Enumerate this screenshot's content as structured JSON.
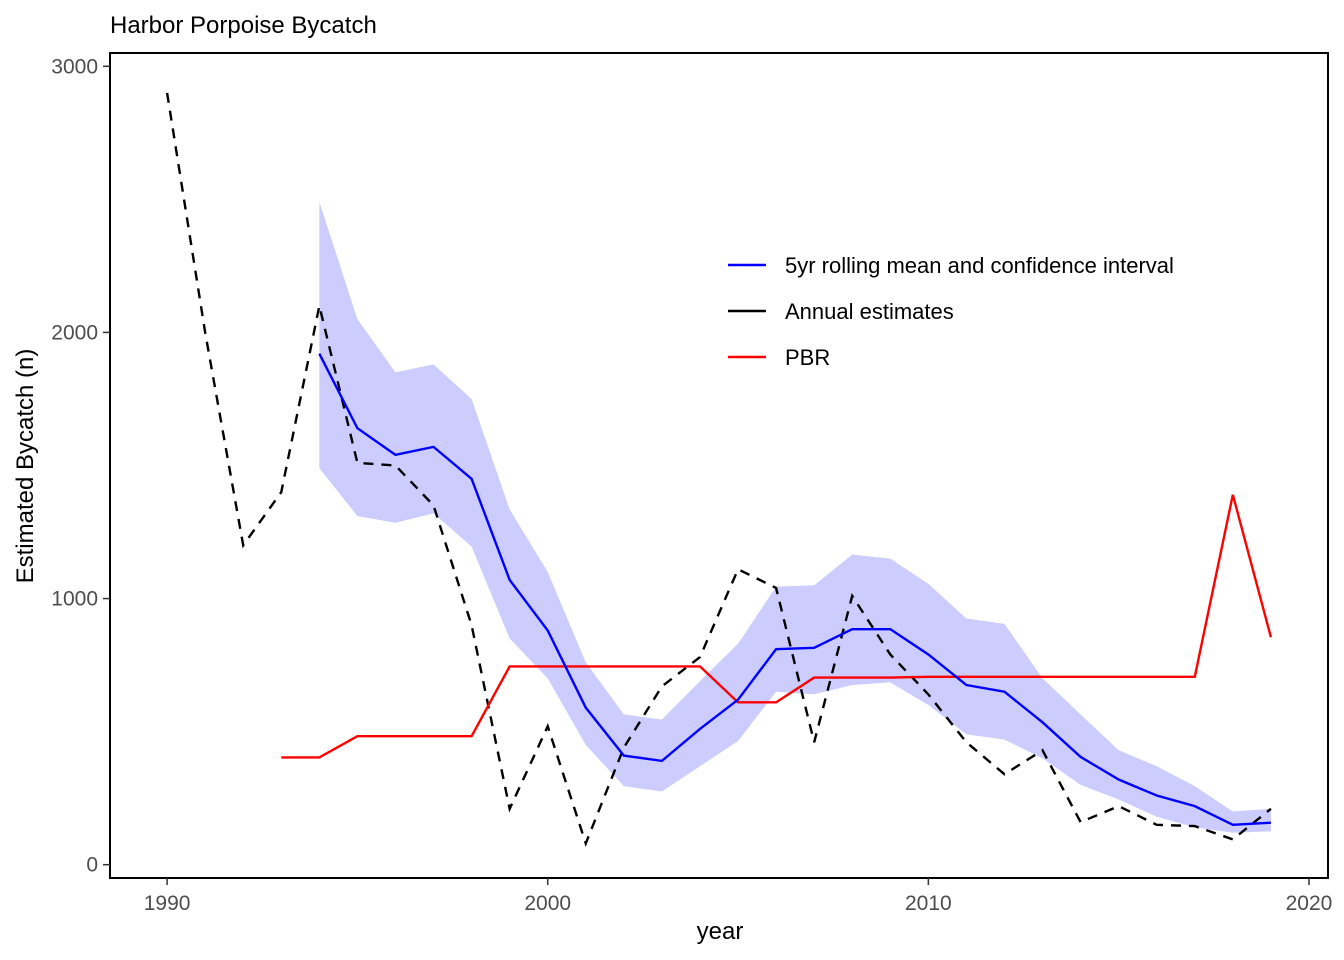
{
  "chart_data": {
    "type": "line",
    "title": "Harbor Porpoise Bycatch",
    "xlabel": "year",
    "ylabel": "Estimated Bycatch (n)",
    "xlim": [
      1988.5,
      2020.5
    ],
    "ylim": [
      -50,
      3050
    ],
    "x_ticks": [
      1990,
      2000,
      2010,
      2020
    ],
    "y_ticks": [
      0,
      1000,
      2000,
      3000
    ],
    "grid": false,
    "legend_position": "top-right inside",
    "colors": {
      "rolling_mean": "#0000ff",
      "ci_band": "#ccccff",
      "annual": "#000000",
      "pbr": "#ff0000"
    },
    "legend": [
      {
        "label": "5yr rolling mean and confidence interval",
        "color": "#0000ff",
        "dash": "solid"
      },
      {
        "label": "Annual estimates",
        "color": "#000000",
        "dash": "solid"
      },
      {
        "label": "PBR",
        "color": "#ff0000",
        "dash": "solid"
      }
    ],
    "series": [
      {
        "name": "Annual estimates",
        "style": "dashed",
        "x": [
          1990,
          1991,
          1992,
          1993,
          1994,
          1995,
          1996,
          1997,
          1998,
          1999,
          2000,
          2001,
          2002,
          2003,
          2004,
          2005,
          2006,
          2007,
          2008,
          2009,
          2010,
          2011,
          2012,
          2013,
          2014,
          2015,
          2016,
          2017,
          2018,
          2019
        ],
        "y": [
          2900,
          2000,
          1200,
          1400,
          2100,
          1510,
          1500,
          1350,
          900,
          210,
          520,
          80,
          440,
          670,
          780,
          1110,
          1040,
          460,
          1010,
          790,
          640,
          460,
          340,
          430,
          160,
          220,
          150,
          145,
          95,
          210
        ]
      },
      {
        "name": "5yr rolling mean and confidence interval",
        "style": "solid",
        "x": [
          1994,
          1995,
          1996,
          1997,
          1998,
          1999,
          2000,
          2001,
          2002,
          2003,
          2004,
          2005,
          2006,
          2007,
          2008,
          2009,
          2010,
          2011,
          2012,
          2013,
          2014,
          2015,
          2016,
          2017,
          2018,
          2019
        ],
        "y": [
          1920,
          1640,
          1540,
          1570,
          1450,
          1070,
          880,
          590,
          410,
          390,
          510,
          620,
          810,
          815,
          885,
          885,
          790,
          675,
          650,
          535,
          405,
          320,
          260,
          220,
          150,
          158
        ],
        "lower": [
          1490,
          1310,
          1285,
          1320,
          1195,
          850,
          700,
          450,
          295,
          275,
          370,
          465,
          650,
          640,
          675,
          685,
          600,
          490,
          470,
          400,
          300,
          245,
          180,
          140,
          120,
          125
        ],
        "upper": [
          2490,
          2050,
          1850,
          1880,
          1750,
          1335,
          1100,
          760,
          565,
          545,
          690,
          830,
          1045,
          1050,
          1165,
          1150,
          1055,
          925,
          905,
          700,
          565,
          430,
          370,
          295,
          200,
          210
        ]
      },
      {
        "name": "PBR",
        "style": "solid",
        "x": [
          1993,
          1994,
          1995,
          1996,
          1997,
          1998,
          1999,
          2000,
          2001,
          2002,
          2003,
          2004,
          2005,
          2006,
          2007,
          2008,
          2009,
          2010,
          2011,
          2012,
          2013,
          2014,
          2015,
          2016,
          2017,
          2018,
          2019
        ],
        "y": [
          403,
          403,
          483,
          483,
          483,
          483,
          745,
          745,
          745,
          745,
          745,
          745,
          610,
          610,
          703,
          703,
          703,
          706,
          706,
          706,
          706,
          706,
          706,
          706,
          706,
          1390,
          855
        ]
      }
    ]
  }
}
